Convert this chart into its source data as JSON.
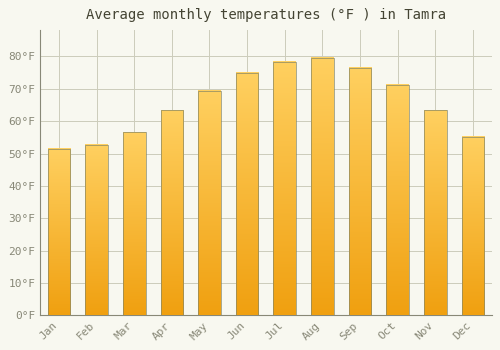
{
  "title": "Average monthly temperatures (°F ) in Tamra",
  "months": [
    "Jan",
    "Feb",
    "Mar",
    "Apr",
    "May",
    "Jun",
    "Jul",
    "Aug",
    "Sep",
    "Oct",
    "Nov",
    "Dec"
  ],
  "values": [
    51.5,
    52.7,
    56.5,
    63.3,
    69.3,
    74.8,
    78.3,
    79.5,
    76.5,
    71.2,
    63.3,
    55.0
  ],
  "bar_color_bottom": "#F0A010",
  "bar_color_top": "#FFD060",
  "bar_color_right": "#FFB820",
  "background_color": "#F8F8F0",
  "grid_color": "#CCCCBB",
  "text_color": "#888877",
  "title_color": "#444433",
  "ylim": [
    0,
    88
  ],
  "yticks": [
    0,
    10,
    20,
    30,
    40,
    50,
    60,
    70,
    80
  ],
  "ytick_labels": [
    "0°F",
    "10°F",
    "20°F",
    "30°F",
    "40°F",
    "50°F",
    "60°F",
    "70°F",
    "80°F"
  ],
  "title_fontsize": 10,
  "tick_fontsize": 8,
  "font_family": "monospace"
}
